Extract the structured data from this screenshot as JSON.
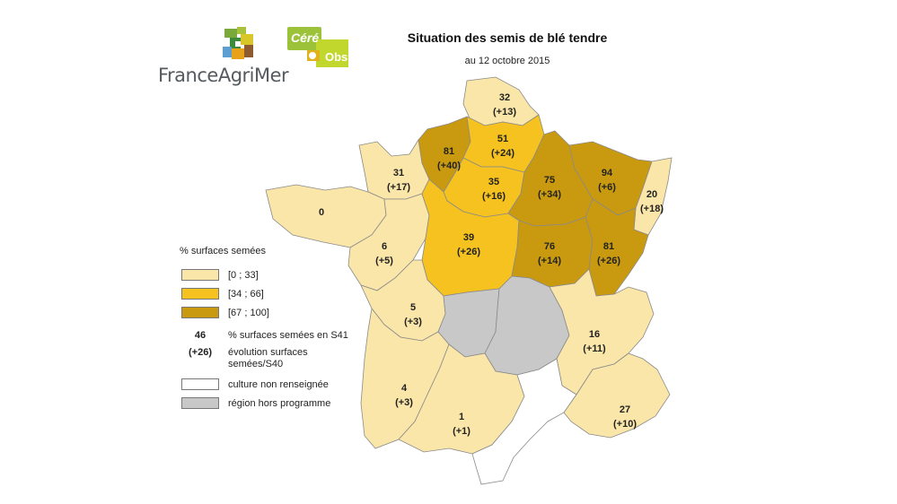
{
  "header": {
    "title": "Situation des semis de blé tendre",
    "subtitle": "au 12 octobre 2015"
  },
  "logos": {
    "franceagrimer": {
      "wordmark": "FranceAgriMer",
      "icon": "franceagrimer-logo-icon"
    },
    "cereobs": {
      "text_top": "Céré",
      "text_bottom": "Obs",
      "color": "#b6cc2a"
    }
  },
  "colors": {
    "low": "#fae6a8",
    "mid": "#f5c21f",
    "high": "#c99a0f",
    "none": "#ffffff",
    "out": "#c8c8c8"
  },
  "legend": {
    "title": "% surfaces semées",
    "classes": [
      {
        "label": "[0 ; 33]",
        "color": "#fae6a8"
      },
      {
        "label": "[34 ; 66]",
        "color": "#f5c21f"
      },
      {
        "label": "[67 ; 100]",
        "color": "#c99a0f"
      }
    ],
    "example_value": "46",
    "example_value_text": "% surfaces semées en S41",
    "example_evolution": "(+26)",
    "example_evolution_text": "évolution surfaces semées/S40",
    "none_label": "culture non renseignée",
    "out_label": "région hors programme"
  },
  "regions": [
    {
      "value": "32",
      "evolution": "(+13)",
      "category": "low"
    },
    {
      "value": "81",
      "evolution": "(+40)",
      "category": "high"
    },
    {
      "value": "51",
      "evolution": "(+24)",
      "category": "mid"
    },
    {
      "value": "31",
      "evolution": "(+17)",
      "category": "low"
    },
    {
      "value": "0",
      "evolution": "",
      "category": "low"
    },
    {
      "value": "35",
      "evolution": "(+16)",
      "category": "mid"
    },
    {
      "value": "75",
      "evolution": "(+34)",
      "category": "high"
    },
    {
      "value": "94",
      "evolution": "(+6)",
      "category": "high"
    },
    {
      "value": "20",
      "evolution": "(+18)",
      "category": "low"
    },
    {
      "value": "6",
      "evolution": "(+5)",
      "category": "low"
    },
    {
      "value": "39",
      "evolution": "(+26)",
      "category": "mid"
    },
    {
      "value": "76",
      "evolution": "(+14)",
      "category": "high"
    },
    {
      "value": "81",
      "evolution": "(+26)",
      "category": "high"
    },
    {
      "value": "5",
      "evolution": "(+3)",
      "category": "low"
    },
    {
      "value": "16",
      "evolution": "(+11)",
      "category": "low"
    },
    {
      "value": "4",
      "evolution": "(+3)",
      "category": "low"
    },
    {
      "value": "1",
      "evolution": "(+1)",
      "category": "low"
    },
    {
      "value": "27",
      "evolution": "(+10)",
      "category": "low"
    }
  ]
}
